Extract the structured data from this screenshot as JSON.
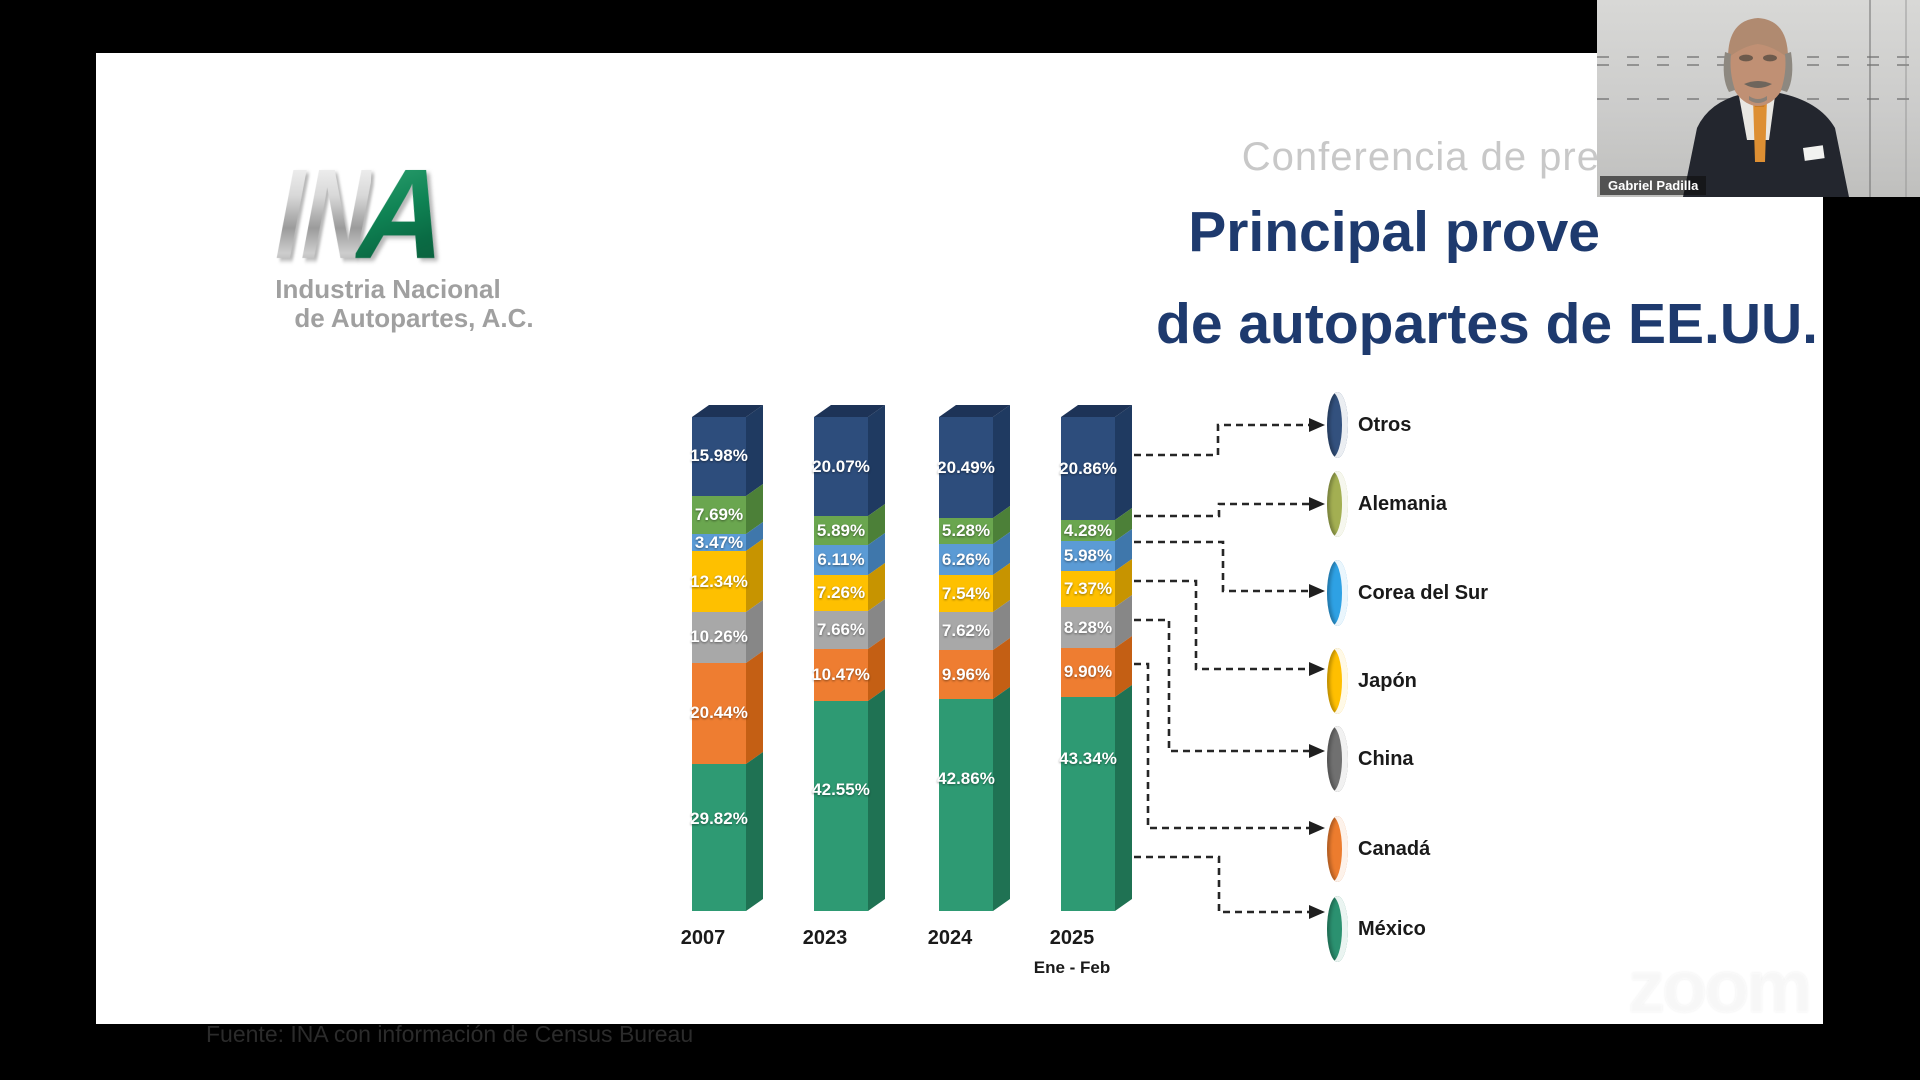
{
  "header": {
    "conference_text": "Conferencia de pre",
    "title_line1": "Principal prove",
    "title_line2": "de autopartes de EE.UU.",
    "title_color": "#1e3a6e"
  },
  "logo": {
    "letters_silver": "IN",
    "letter_green": "A",
    "subtitle_line1": "Industria Nacional",
    "subtitle_line2": "de Autopartes, A.C."
  },
  "webcam": {
    "name_label": "Gabriel Padilla"
  },
  "watermark_text": "zoom",
  "source_text": "Fuente: INA con información de Census Bureau",
  "chart_data": {
    "type": "bar",
    "stacked": true,
    "value_suffix": "%",
    "ylim": [
      0,
      100
    ],
    "legend_position": "right",
    "categories": [
      "2007",
      "2023",
      "2024",
      "2025"
    ],
    "category_sublabels": [
      "",
      "",
      "",
      "Ene - Feb"
    ],
    "series": [
      {
        "name": "Otros",
        "color": "#2d4d7c",
        "side_color": "#1f3a61",
        "legend_color": "#33517e",
        "values": [
          15.98,
          20.07,
          20.49,
          20.86
        ]
      },
      {
        "name": "Alemania",
        "color": "#6aa64f",
        "side_color": "#4c8038",
        "legend_color": "#a3af52",
        "values": [
          7.69,
          5.89,
          5.28,
          4.28
        ]
      },
      {
        "name": "Corea del Sur",
        "color": "#5b9bd5",
        "side_color": "#3f77ab",
        "legend_color": "#2ea1e4",
        "values": [
          3.47,
          6.11,
          6.26,
          5.98
        ]
      },
      {
        "name": "Japón",
        "color": "#fec000",
        "side_color": "#c79400",
        "legend_color": "#ffbf00",
        "values": [
          12.34,
          7.26,
          7.54,
          7.37
        ]
      },
      {
        "name": "China",
        "color": "#a8a8a8",
        "side_color": "#878787",
        "legend_color": "#707070",
        "values": [
          10.26,
          7.66,
          7.62,
          8.28
        ]
      },
      {
        "name": "Canadá",
        "color": "#ee7d31",
        "side_color": "#c45f14",
        "legend_color": "#ec7c2e",
        "values": [
          20.44,
          10.47,
          9.96,
          9.9
        ]
      },
      {
        "name": "México",
        "color": "#2e9a73",
        "side_color": "#1f7253",
        "legend_color": "#2b9170",
        "values": [
          29.82,
          42.55,
          42.86,
          43.34
        ]
      }
    ]
  }
}
